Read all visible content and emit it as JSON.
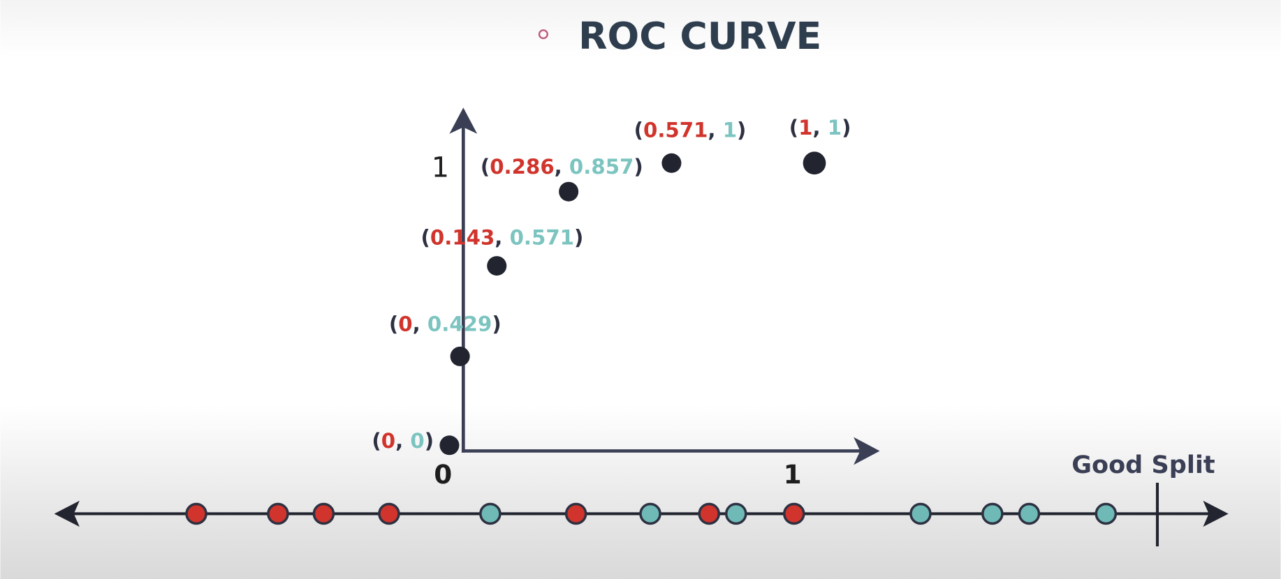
{
  "header": {
    "title": "ROC CURVE"
  },
  "axes": {
    "y_top": "1",
    "origin": "0",
    "x_right": "1"
  },
  "points": [
    {
      "label_parts": [
        "(",
        "0",
        ", ",
        "0",
        ")"
      ]
    },
    {
      "label_parts": [
        "(",
        "0",
        ", ",
        "0.429",
        ")"
      ]
    },
    {
      "label_parts": [
        "(",
        "0.143",
        ", ",
        "0.571",
        ")"
      ]
    },
    {
      "label_parts": [
        "(",
        "0.286",
        ", ",
        "0.857",
        ")"
      ]
    },
    {
      "label_parts": [
        "(",
        "0.571",
        ", ",
        "1",
        ")"
      ]
    },
    {
      "label_parts": [
        "(",
        "1",
        ", ",
        "1",
        ")"
      ]
    }
  ],
  "split": {
    "label": "Good Split"
  }
}
